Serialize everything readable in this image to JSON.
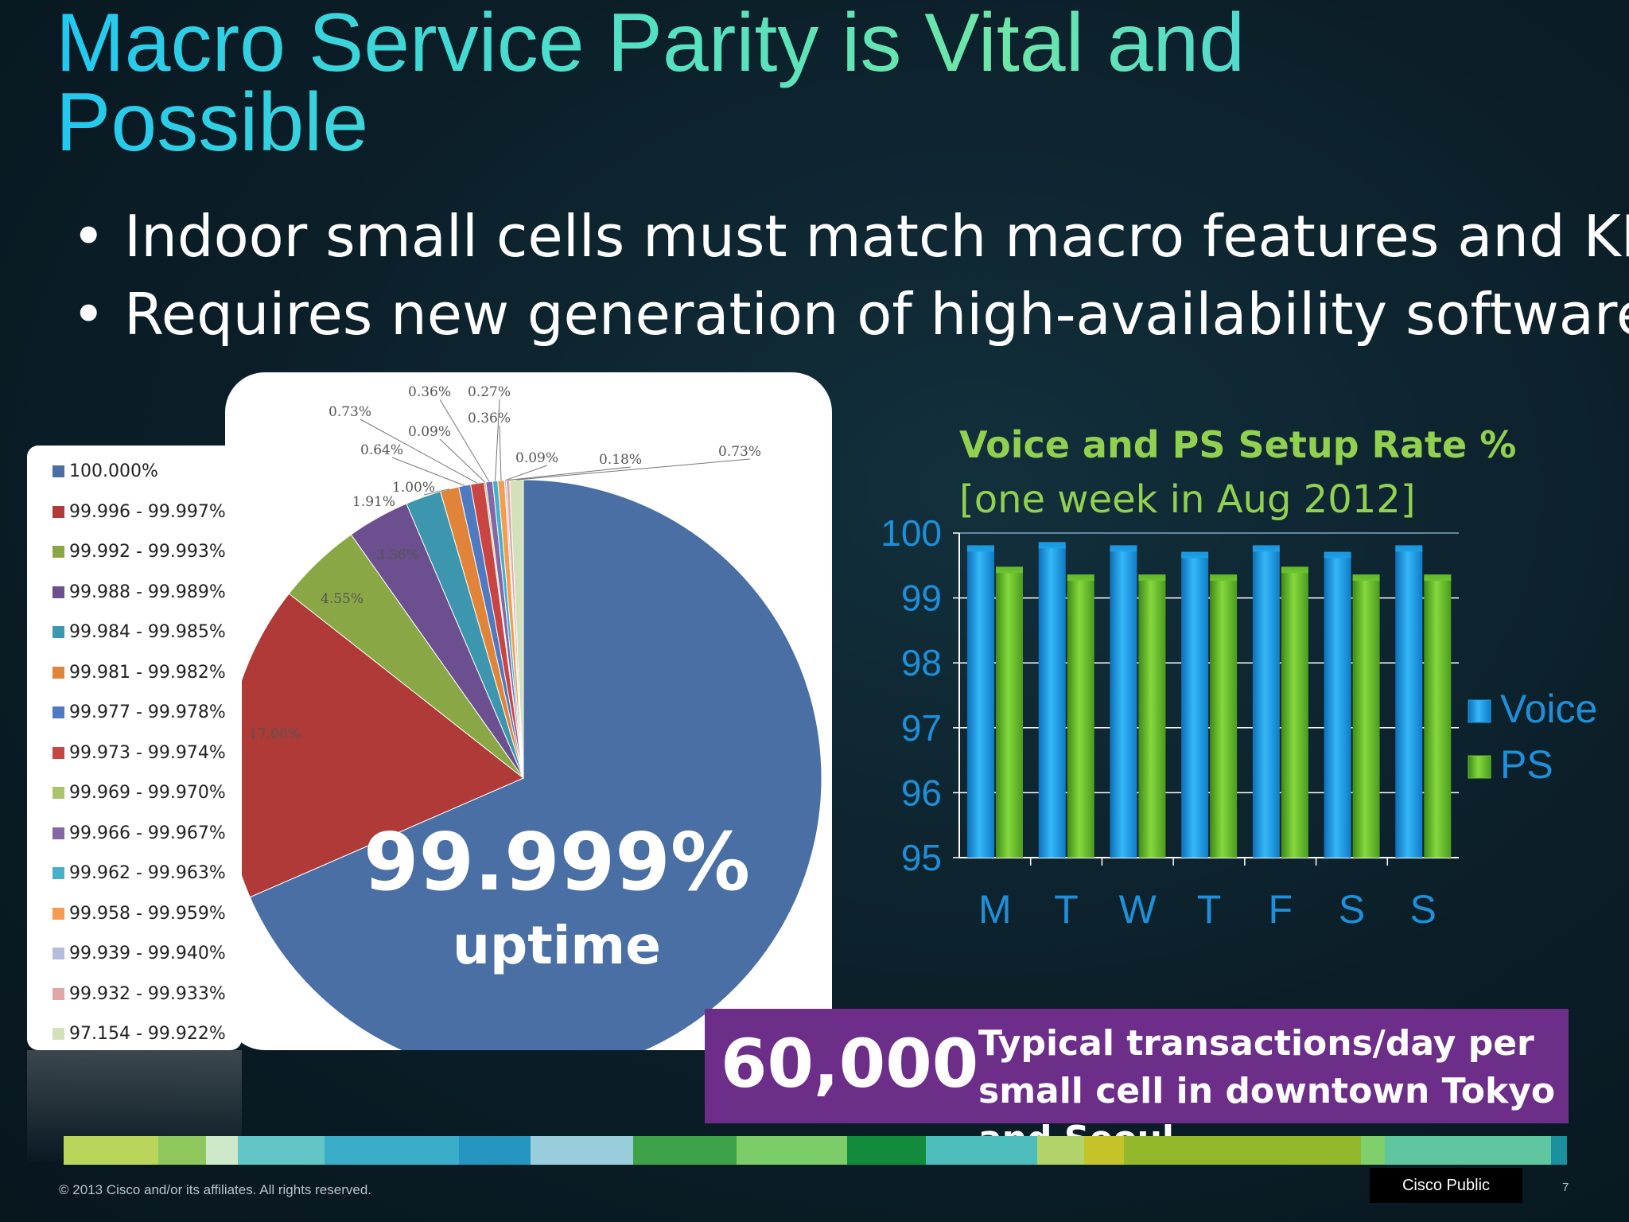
{
  "slide": {
    "title": "Macro Service Parity is Vital and Possible",
    "bullets": [
      "Indoor small cells must match macro features and KPIs",
      "Requires new generation of high-availability software"
    ],
    "bullet_glyph": "•",
    "highlight": {
      "value": "99.999%",
      "label": "uptime"
    },
    "stat": {
      "number": "60,000",
      "description": "Typical transactions/day per small cell in downtown Tokyo and Seoul"
    },
    "footer": {
      "copyright": "© 2013 Cisco and/or its affiliates. All rights reserved.",
      "classification": "Cisco Public",
      "page": "7"
    },
    "colors": {
      "title": "#3cd6e8",
      "bar_title": "#92d050",
      "stat_box": "#6d2e8a",
      "voice": "#1e9fe8",
      "ps": "#6cc22e",
      "axis": "#1e8fd8"
    }
  },
  "chart_data": [
    {
      "type": "pie",
      "legend_position": "left",
      "categories": [
        "100.000%",
        "99.996 - 99.997%",
        "99.992 - 99.993%",
        "99.988 - 99.989%",
        "99.984 - 99.985%",
        "99.981 - 99.982%",
        "99.977 - 99.978%",
        "99.973 - 99.974%",
        "99.969 - 99.970%",
        "99.966 - 99.967%",
        "99.962 - 99.963%",
        "99.958 - 99.959%",
        "99.939 - 99.940%",
        "99.932 - 99.933%",
        "97.154 - 99.922%"
      ],
      "values": [
        67.88,
        17.0,
        4.55,
        3.36,
        1.91,
        1.0,
        0.64,
        0.73,
        0.09,
        0.36,
        0.27,
        0.36,
        0.09,
        0.18,
        0.73
      ],
      "value_labels": [
        "",
        "17.00%",
        "4.55%",
        "3.36%",
        "1.91%",
        "1.00%",
        "0.64%",
        "0.73%",
        "0.09%",
        "0.36%",
        "0.27%",
        "0.36%",
        "0.09%",
        "0.18%",
        "0.73%"
      ],
      "colors": [
        "#4a6fa5",
        "#b03a37",
        "#8aa745",
        "#6b4f8e",
        "#3c97ae",
        "#e1843a",
        "#4f79c0",
        "#c94541",
        "#a9c46a",
        "#8567a8",
        "#45b0cc",
        "#f59c4e",
        "#b4bedc",
        "#e1a7a6",
        "#d4e0b9"
      ]
    },
    {
      "type": "bar",
      "title": "Voice and PS Setup Rate %",
      "subtitle": "[one week in Aug 2012]",
      "categories": [
        "M",
        "T",
        "W",
        "T",
        "F",
        "S",
        "S"
      ],
      "series": [
        {
          "name": "Voice",
          "values": [
            99.75,
            99.8,
            99.75,
            99.65,
            99.75,
            99.65,
            99.75
          ]
        },
        {
          "name": "PS",
          "values": [
            99.42,
            99.3,
            99.3,
            99.3,
            99.42,
            99.3,
            99.3
          ]
        }
      ],
      "ylim": [
        95,
        100
      ],
      "yticks": [
        "95",
        "96",
        "97",
        "98",
        "99",
        "100"
      ],
      "grid": true,
      "legend_position": "right"
    }
  ]
}
